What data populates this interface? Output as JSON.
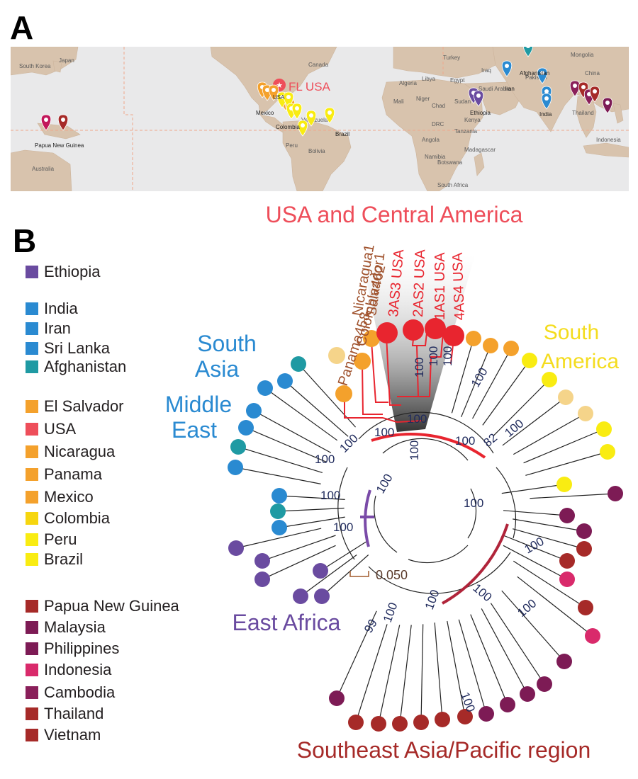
{
  "panels": {
    "a_label": "A",
    "b_label": "B"
  },
  "map": {
    "highlight_label": "FL  USA",
    "country_labels": {
      "usa": "USA",
      "mexico": "Mexico",
      "colombia": "Colombia",
      "brazil": "Brazil",
      "png": "Papua New Guinea",
      "ethiopia": "Ethiopia",
      "iran": "Iran",
      "afghanistan": "Afghanistan",
      "india": "India"
    },
    "basemap_labels": {
      "south_korea": "South Korea",
      "japan": "Japan",
      "australia": "Australia",
      "canada": "Canada",
      "venezuela": "Venezuela",
      "peru": "Peru",
      "bolivia": "Bolivia",
      "mali": "Mali",
      "niger": "Niger",
      "chad": "Chad",
      "sudan": "Sudan",
      "libya": "Libya",
      "egypt": "Egypt",
      "saudi": "Saudi Arabia",
      "iraq": "Iraq",
      "pakistan": "Pakistan",
      "drc": "DRC",
      "tanzania": "Tanzania",
      "namibia": "Namibia",
      "botswana": "Botswana",
      "madagascar": "Madagascar",
      "south_africa": "South Africa",
      "indonesia": "Indonesia",
      "mongolia": "Mongolia",
      "turkey": "Turkey",
      "algeria": "Algeria",
      "angola": "Angola",
      "kenya": "Kenya",
      "ethiopia_bg": "Ethiopia",
      "china": "China",
      "thailand": "Thailand"
    }
  },
  "legend": [
    {
      "label": "Ethiopia",
      "color": "#6a4ba0"
    },
    {
      "label": "India",
      "color": "#2a8ad1"
    },
    {
      "label": "Iran",
      "color": "#2a8ad1"
    },
    {
      "label": "Sri Lanka",
      "color": "#2a8ad1"
    },
    {
      "label": "Afghanistan",
      "color": "#1f9aa3"
    },
    {
      "label": "El Salvador",
      "color": "#f4a12c"
    },
    {
      "label": "USA",
      "color": "#ee4e5a"
    },
    {
      "label": "Nicaragua",
      "color": "#f4a12c"
    },
    {
      "label": "Panama",
      "color": "#f4a12c"
    },
    {
      "label": "Mexico",
      "color": "#f4a12c"
    },
    {
      "label": "Colombia",
      "color": "#f6d60f"
    },
    {
      "label": "Peru",
      "color": "#f9ec12"
    },
    {
      "label": "Brazil",
      "color": "#f9ec12"
    },
    {
      "label": "Papua New Guinea",
      "color": "#a62a28"
    },
    {
      "label": "Malaysia",
      "color": "#7d1b55"
    },
    {
      "label": "Philippines",
      "color": "#7d1b55"
    },
    {
      "label": "Indonesia",
      "color": "#d92a6b"
    },
    {
      "label": "Cambodia",
      "color": "#8a1f5a"
    },
    {
      "label": "Thailand",
      "color": "#a62a28"
    },
    {
      "label": "Vietnam",
      "color": "#a62a28"
    }
  ],
  "regions": {
    "usa_central": "USA and Central America",
    "south_america_1": "South",
    "south_america_2": "America",
    "south_asia_1": "South",
    "south_asia_2": "Asia",
    "middle_east_1": "Middle",
    "middle_east_2": "East",
    "east_africa": "East Africa",
    "se_asia": "Southeast Asia/Pacific region"
  },
  "taxa": {
    "panama": "Panama458",
    "colombia": "Colombia462",
    "nicaragua": "Nicaragua1",
    "salvador": "Salvador1",
    "as3": "3AS3 USA",
    "as2": "2AS2 USA",
    "as1": "1AS1 USA",
    "as4": "4AS4 USA"
  },
  "bootstrap": [
    "100",
    "100",
    "100",
    "100",
    "100",
    "100",
    "100",
    "82",
    "100",
    "100",
    "100",
    "100",
    "100",
    "100",
    "100",
    "100",
    "100",
    "100",
    "99",
    "100",
    "100",
    "100"
  ],
  "scale_bar": "0.050",
  "colors": {
    "usa_red": "#ee4e5a",
    "clade_red": "#e8252f",
    "orange": "#f4a12c",
    "light_orange": "#f5d48a",
    "yellow": "#f9ec12",
    "blue": "#2a8ad1",
    "teal": "#1f9aa3",
    "purple": "#6a4ba0",
    "dark_red": "#a62a28",
    "maroon": "#7d1b55",
    "pink": "#d92a6b",
    "brown_label": "#a0522d",
    "bootstrap_navy": "#1f2a5c"
  }
}
